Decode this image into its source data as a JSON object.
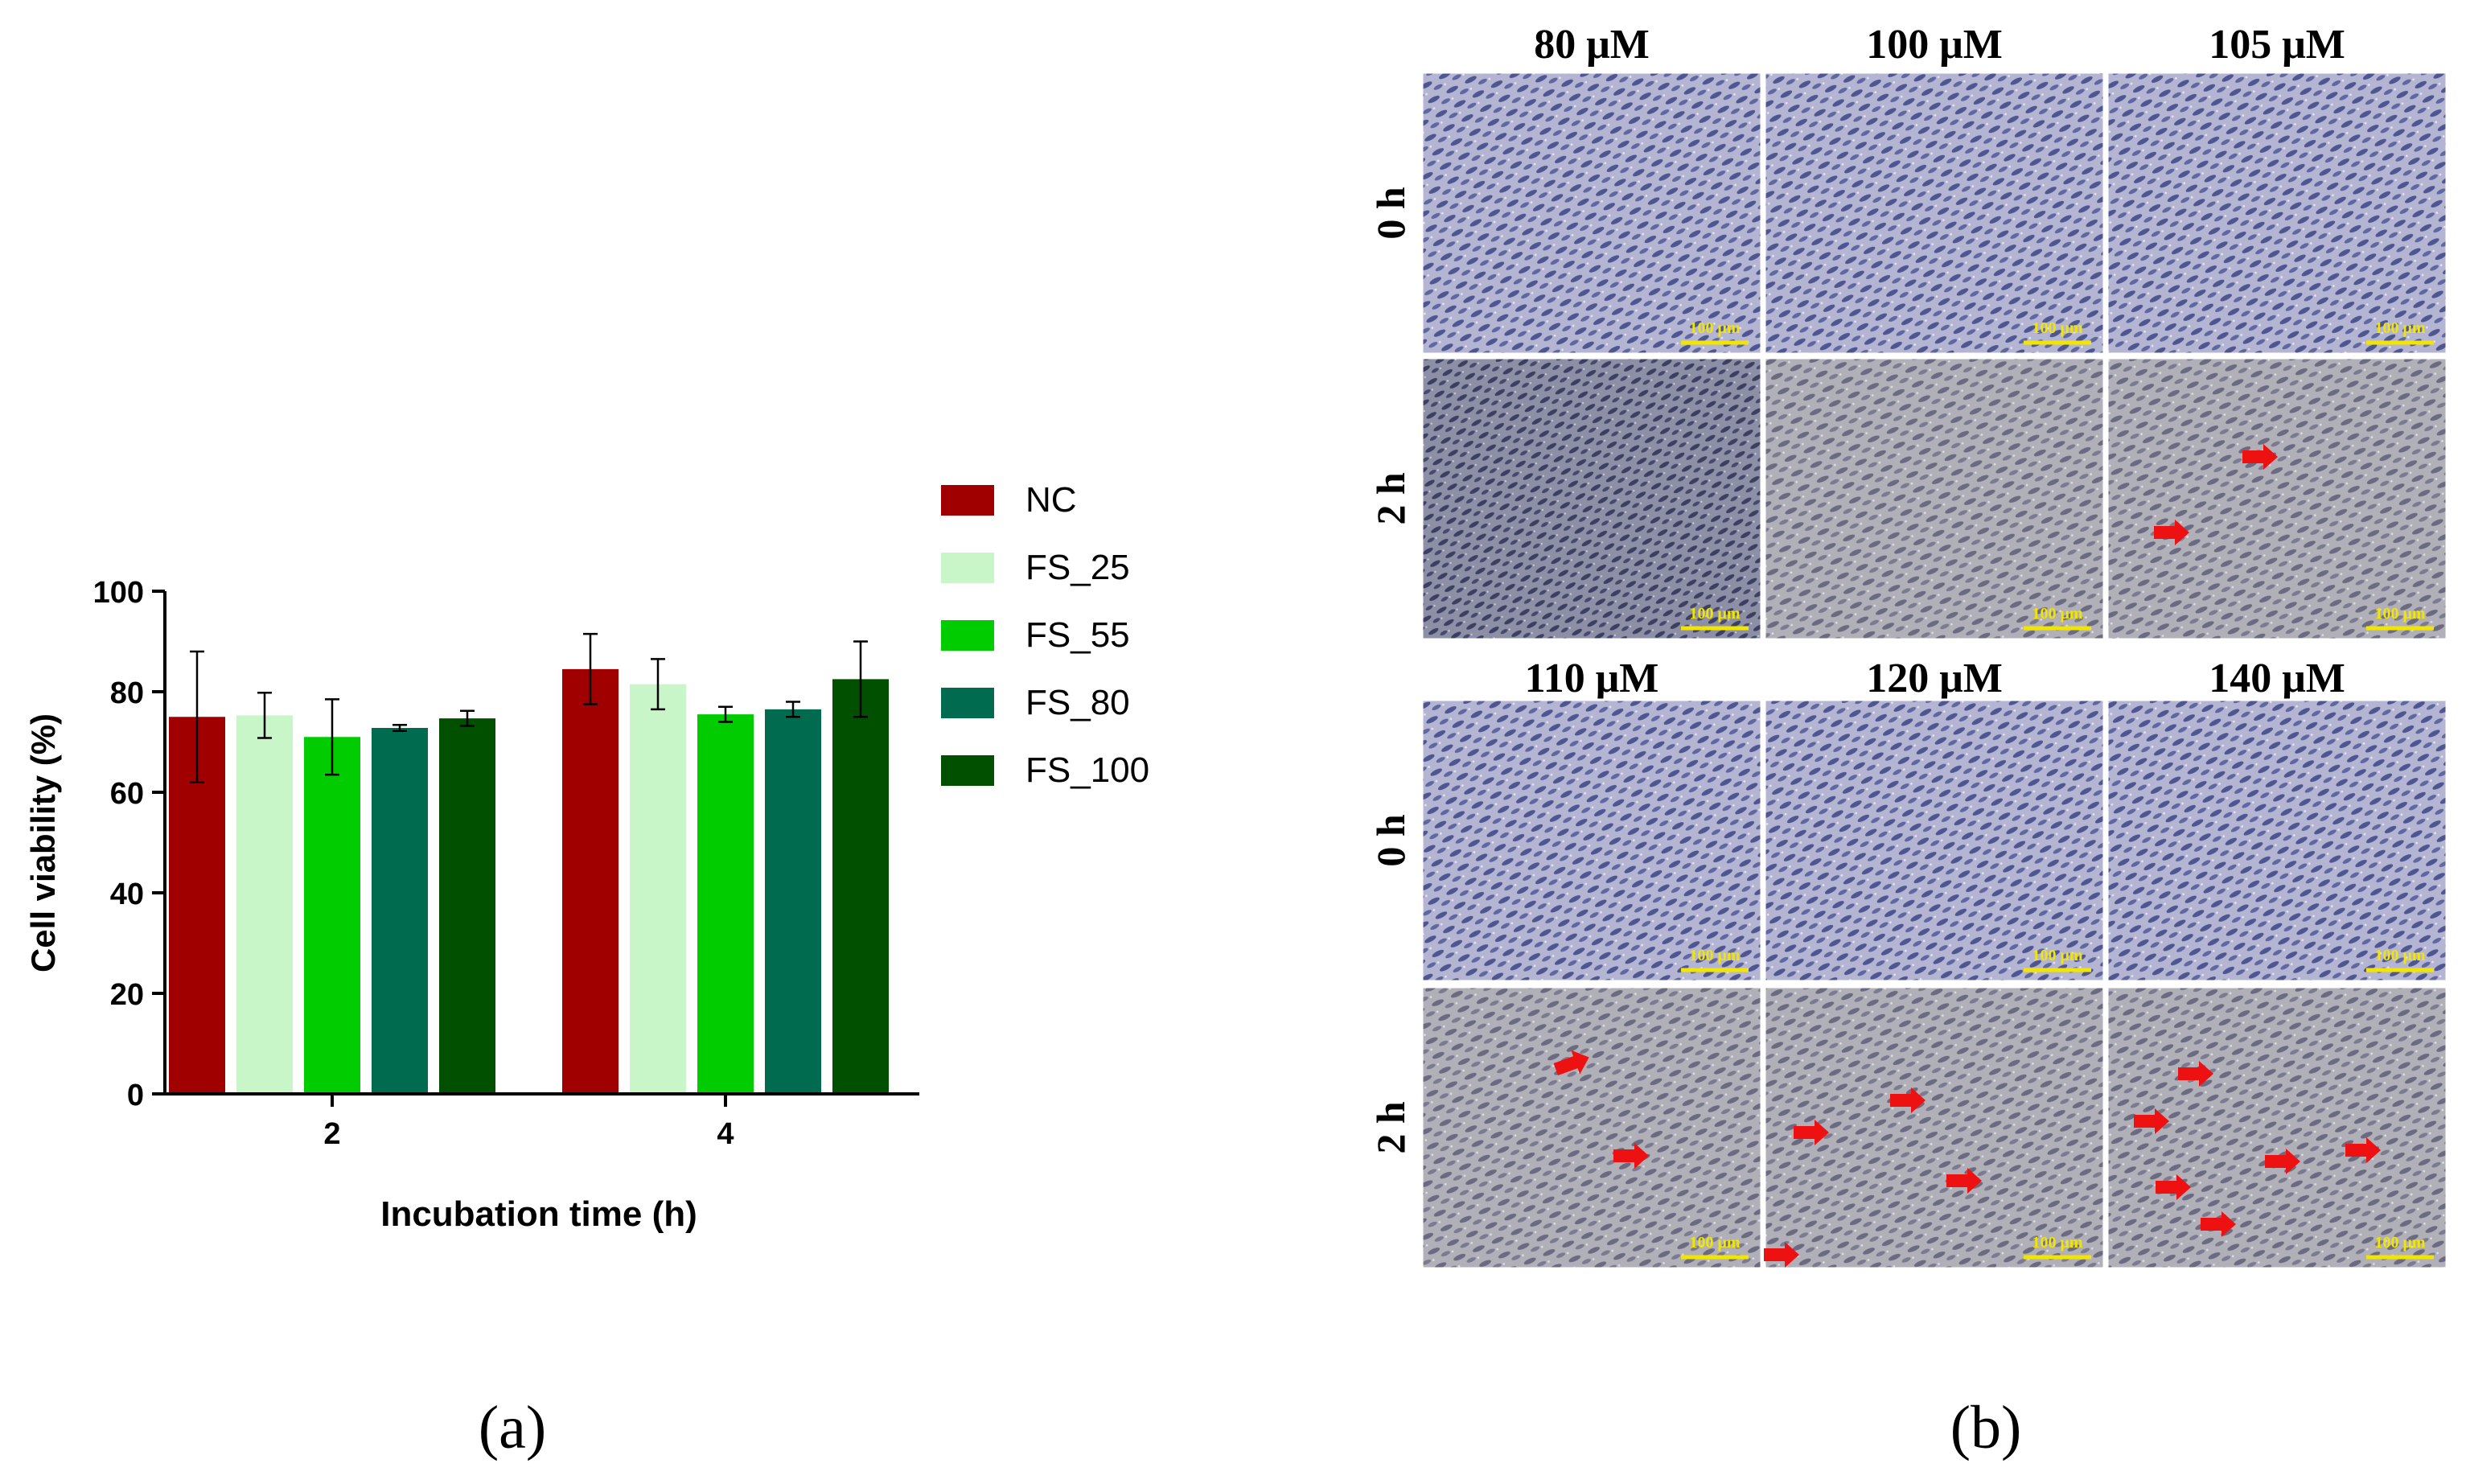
{
  "panel_a": {
    "label": "(a)"
  },
  "panel_b": {
    "label": "(b)",
    "top_columns": [
      "80 μM",
      "100 μM",
      "105 μM"
    ],
    "bottom_columns": [
      "110 μM",
      "120 μM",
      "140 μM"
    ],
    "rows": [
      "0 h",
      "2 h"
    ],
    "scale_bar": "100 μm",
    "arrow_color": "#ee1111",
    "scale_color": "#f2e600"
  },
  "chart_data": {
    "type": "bar",
    "title": "",
    "xlabel": "Incubation time (h)",
    "ylabel": "Cell viability (%)",
    "categories": [
      "2",
      "4"
    ],
    "ylim": [
      0,
      100
    ],
    "yticks": [
      0,
      20,
      40,
      60,
      80,
      100
    ],
    "legend_position": "right",
    "series": [
      {
        "name": "NC",
        "color": "#a00000",
        "values": [
          75,
          84.5
        ],
        "errors": [
          13,
          7
        ]
      },
      {
        "name": "FS_25",
        "color": "#c8f6c8",
        "values": [
          75.3,
          81.5
        ],
        "errors": [
          4.5,
          5
        ]
      },
      {
        "name": "FS_55",
        "color": "#00cc00",
        "values": [
          71,
          75.5
        ],
        "errors": [
          7.5,
          1.5
        ]
      },
      {
        "name": "FS_80",
        "color": "#006b4e",
        "values": [
          72.8,
          76.5
        ],
        "errors": [
          0.6,
          1.5
        ]
      },
      {
        "name": "FS_100",
        "color": "#005000",
        "values": [
          74.7,
          82.5
        ],
        "errors": [
          1.5,
          7.5
        ]
      }
    ]
  }
}
